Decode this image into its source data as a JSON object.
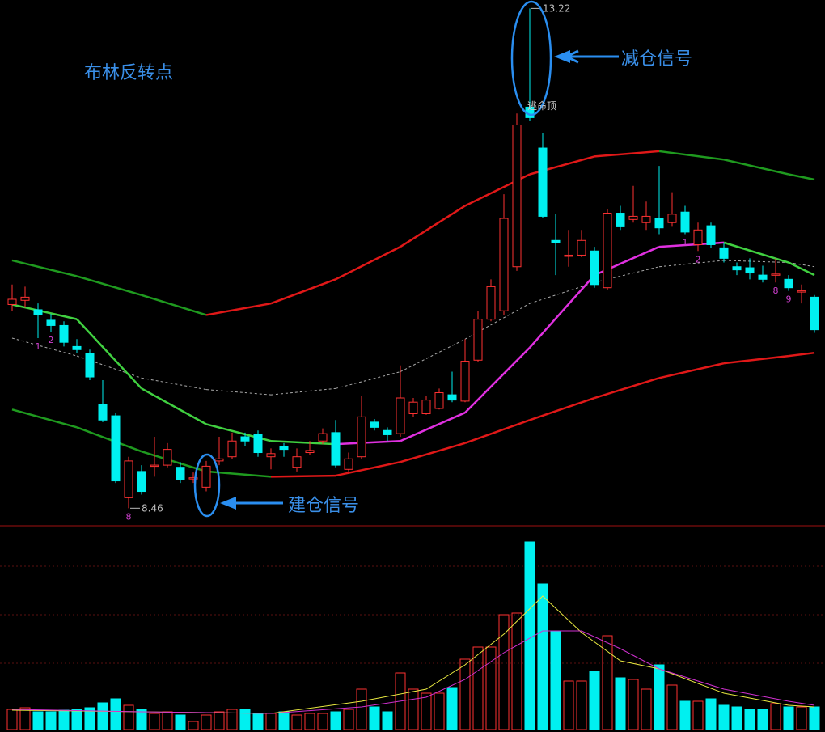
{
  "chart_data": [
    {
      "type": "candlestick",
      "title": "布林反转点",
      "annotations": [
        "减仓信号",
        "建仓信号",
        "逃命顶"
      ],
      "up_color": "#ff3232",
      "down_color": "#00f0f0",
      "ylim": [
        8.37,
        13.3
      ],
      "open": [
        10.4,
        10.44,
        10.35,
        10.25,
        10.2,
        10.0,
        9.93,
        9.45,
        9.34,
        8.56,
        8.81,
        8.86,
        8.87,
        8.85,
        8.74,
        8.66,
        8.91,
        8.95,
        9.14,
        9.16,
        8.95,
        9.05,
        8.85,
        8.99,
        9.1,
        9.18,
        8.83,
        8.95,
        9.28,
        9.2,
        9.17,
        9.36,
        9.36,
        9.41,
        9.54,
        9.48,
        9.87,
        10.26,
        10.34,
        10.76,
        12.28,
        11.89,
        11.01,
        10.86,
        10.87,
        10.91,
        10.56,
        11.27,
        11.21,
        11.18,
        11.22,
        11.18,
        11.28,
        10.97,
        11.15,
        10.94,
        10.76,
        10.75,
        10.68,
        10.68,
        10.64,
        10.52,
        10.47
      ],
      "high": [
        10.59,
        10.57,
        10.41,
        10.31,
        10.24,
        10.07,
        9.97,
        9.68,
        9.37,
        8.95,
        8.87,
        9.14,
        9.08,
        8.9,
        8.8,
        8.91,
        9.14,
        9.18,
        9.18,
        9.2,
        9.03,
        9.08,
        9.03,
        9.1,
        9.22,
        9.3,
        8.99,
        9.53,
        9.31,
        9.23,
        9.82,
        9.51,
        9.53,
        9.6,
        9.76,
        10.07,
        10.34,
        10.64,
        11.45,
        12.22,
        13.22,
        12.03,
        11.26,
        11.11,
        11.11,
        10.95,
        11.31,
        11.34,
        11.53,
        11.38,
        11.72,
        11.47,
        11.34,
        11.18,
        11.18,
        10.99,
        10.8,
        10.84,
        10.77,
        10.84,
        10.68,
        10.59,
        10.49
      ],
      "low": [
        10.34,
        10.37,
        10.08,
        10.14,
        10.0,
        9.94,
        9.68,
        9.28,
        8.7,
        8.46,
        8.59,
        8.76,
        8.85,
        8.7,
        8.7,
        8.62,
        8.87,
        8.93,
        9.05,
        8.95,
        8.83,
        8.95,
        8.81,
        8.97,
        9.07,
        8.85,
        8.81,
        8.93,
        9.2,
        9.1,
        9.14,
        9.33,
        9.35,
        9.4,
        9.47,
        9.47,
        9.85,
        10.24,
        10.3,
        10.72,
        12.15,
        11.22,
        10.68,
        10.76,
        10.85,
        10.56,
        10.54,
        11.11,
        11.18,
        11.11,
        11.07,
        11.14,
        11.07,
        10.91,
        10.94,
        10.8,
        10.68,
        10.64,
        10.61,
        10.61,
        10.53,
        10.41,
        10.13
      ],
      "close": [
        10.45,
        10.47,
        10.3,
        10.2,
        10.04,
        9.97,
        9.71,
        9.3,
        8.72,
        8.91,
        8.62,
        8.87,
        9.02,
        8.73,
        8.75,
        8.86,
        8.93,
        9.1,
        9.1,
        8.99,
        8.98,
        9.02,
        8.95,
        9.01,
        9.17,
        8.87,
        8.93,
        9.33,
        9.23,
        9.16,
        9.51,
        9.47,
        9.49,
        9.56,
        9.49,
        9.86,
        10.26,
        10.57,
        11.22,
        12.11,
        12.18,
        11.24,
        10.99,
        10.87,
        11.01,
        10.59,
        11.27,
        11.14,
        11.24,
        11.24,
        11.13,
        11.26,
        11.09,
        11.11,
        10.97,
        10.84,
        10.73,
        10.7,
        10.64,
        10.69,
        10.56,
        10.53,
        10.16
      ],
      "lines": [
        {
          "x": [
            0,
            5,
            10,
            15,
            20,
            25,
            30,
            35,
            40,
            45,
            50,
            55,
            60,
            62
          ],
          "values": [
            10.82,
            10.67,
            10.49,
            10.3,
            10.41,
            10.64,
            10.95,
            11.34,
            11.64,
            11.81,
            11.86,
            11.78,
            11.64,
            11.59
          ],
          "rise_color": "#e01818",
          "fall_color": "#1f9a1f"
        },
        {
          "x": [
            0,
            5,
            10,
            15,
            20,
            25,
            30,
            35,
            40,
            45,
            50,
            55,
            60,
            62
          ],
          "values": [
            10.08,
            9.91,
            9.7,
            9.59,
            9.54,
            9.6,
            9.76,
            10.07,
            10.41,
            10.61,
            10.76,
            10.82,
            10.8,
            10.76
          ],
          "rise_color": "#aaaaaa",
          "fall_color": "#aaaaaa",
          "dashed": true
        },
        {
          "x": [
            0,
            5,
            10,
            15,
            20,
            25,
            30,
            35,
            40,
            45,
            50,
            55,
            60,
            62
          ],
          "values": [
            9.4,
            9.23,
            9.0,
            8.81,
            8.76,
            8.77,
            8.9,
            9.08,
            9.3,
            9.51,
            9.7,
            9.84,
            9.91,
            9.94
          ],
          "rise_color": "#e01818",
          "fall_color": "#1f9a1f"
        },
        {
          "x": [
            0,
            5,
            10,
            15,
            20,
            25,
            30,
            35,
            40,
            45,
            50,
            55,
            60,
            62
          ],
          "values": [
            10.4,
            10.26,
            9.6,
            9.26,
            9.1,
            9.07,
            9.1,
            9.37,
            9.99,
            10.68,
            10.95,
            10.99,
            10.8,
            10.68
          ],
          "rise_color": "#e030e0",
          "fall_color": "#40d040"
        }
      ],
      "count_labels": {
        "x": [
          2,
          3,
          9,
          52,
          53,
          59,
          60
        ],
        "labels": [
          "1",
          "2",
          "8",
          "1",
          "2",
          "8",
          "9"
        ]
      }
    },
    {
      "type": "bar",
      "up_color": "#ff3232",
      "down_color": "#00f0f0",
      "ylim": [
        0,
        240
      ],
      "values": [
        25,
        27,
        22,
        22,
        24,
        25,
        27,
        33,
        38,
        30,
        25,
        20,
        22,
        18,
        10,
        18,
        22,
        25,
        25,
        20,
        20,
        22,
        18,
        20,
        20,
        22,
        25,
        50,
        28,
        22,
        70,
        50,
        45,
        45,
        52,
        87,
        102,
        102,
        142,
        144,
        232,
        180,
        122,
        60,
        60,
        72,
        116,
        64,
        62,
        50,
        80,
        55,
        35,
        35,
        38,
        30,
        28,
        25,
        25,
        32,
        28,
        28,
        28
      ],
      "lines": [
        {
          "x": [
            0,
            10,
            20,
            27,
            32,
            35,
            38,
            41,
            44,
            47,
            50,
            55,
            60,
            62
          ],
          "values": [
            24,
            22,
            20,
            35,
            50,
            80,
            118,
            165,
            120,
            85,
            75,
            45,
            30,
            28
          ],
          "color": "#e8e840"
        },
        {
          "x": [
            0,
            10,
            20,
            27,
            32,
            35,
            38,
            41,
            44,
            47,
            50,
            55,
            60,
            62
          ],
          "values": [
            25,
            22,
            20,
            28,
            40,
            62,
            95,
            122,
            122,
            100,
            75,
            50,
            35,
            30
          ],
          "color": "#d030d0"
        }
      ]
    }
  ]
}
